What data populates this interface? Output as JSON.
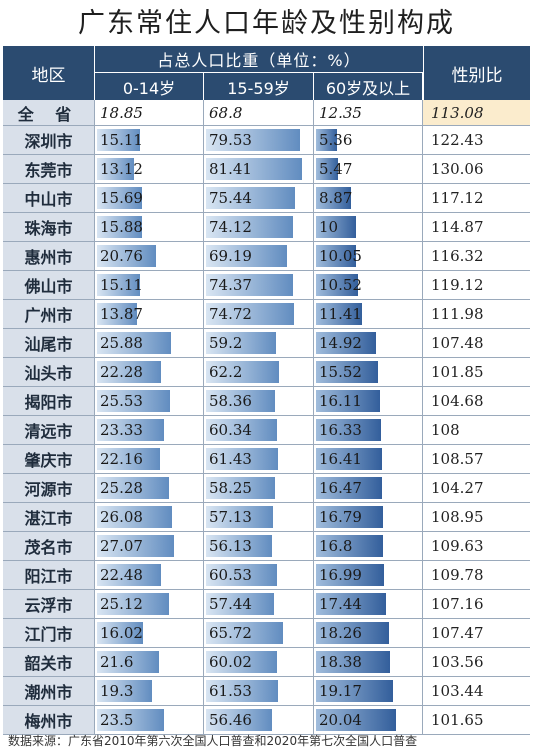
{
  "title": "广东常住人口年龄及性别构成",
  "header": {
    "region": "地区",
    "group": "占总人口比重（单位：%）",
    "age_0_14": "0-14岁",
    "age_15_59": "15-59岁",
    "age_60_plus": "60岁及以上",
    "sex_ratio": "性别比"
  },
  "rows": [
    {
      "region": "全 省",
      "a": "18.85",
      "b": "68.8",
      "c": "12.35",
      "sex": "113.08"
    },
    {
      "region": "深圳市",
      "a": "15.11",
      "b": "79.53",
      "c": "5.36",
      "sex": "122.43"
    },
    {
      "region": "东莞市",
      "a": "13.12",
      "b": "81.41",
      "c": "5.47",
      "sex": "130.06"
    },
    {
      "region": "中山市",
      "a": "15.69",
      "b": "75.44",
      "c": "8.87",
      "sex": "117.12"
    },
    {
      "region": "珠海市",
      "a": "15.88",
      "b": "74.12",
      "c": "10",
      "sex": "114.87"
    },
    {
      "region": "惠州市",
      "a": "20.76",
      "b": "69.19",
      "c": "10.05",
      "sex": "116.32"
    },
    {
      "region": "佛山市",
      "a": "15.11",
      "b": "74.37",
      "c": "10.52",
      "sex": "119.12"
    },
    {
      "region": "广州市",
      "a": "13.87",
      "b": "74.72",
      "c": "11.41",
      "sex": "111.98"
    },
    {
      "region": "汕尾市",
      "a": "25.88",
      "b": "59.2",
      "c": "14.92",
      "sex": "107.48"
    },
    {
      "region": "汕头市",
      "a": "22.28",
      "b": "62.2",
      "c": "15.52",
      "sex": "101.85"
    },
    {
      "region": "揭阳市",
      "a": "25.53",
      "b": "58.36",
      "c": "16.11",
      "sex": "104.68"
    },
    {
      "region": "清远市",
      "a": "23.33",
      "b": "60.34",
      "c": "16.33",
      "sex": "108"
    },
    {
      "region": "肇庆市",
      "a": "22.16",
      "b": "61.43",
      "c": "16.41",
      "sex": "108.57"
    },
    {
      "region": "河源市",
      "a": "25.28",
      "b": "58.25",
      "c": "16.47",
      "sex": "104.27"
    },
    {
      "region": "湛江市",
      "a": "26.08",
      "b": "57.13",
      "c": "16.79",
      "sex": "108.95"
    },
    {
      "region": "茂名市",
      "a": "27.07",
      "b": "56.13",
      "c": "16.8",
      "sex": "109.63"
    },
    {
      "region": "阳江市",
      "a": "22.48",
      "b": "60.53",
      "c": "16.99",
      "sex": "109.78"
    },
    {
      "region": "云浮市",
      "a": "25.12",
      "b": "57.44",
      "c": "17.44",
      "sex": "107.16"
    },
    {
      "region": "江门市",
      "a": "16.02",
      "b": "65.72",
      "c": "18.26",
      "sex": "107.47"
    },
    {
      "region": "韶关市",
      "a": "21.6",
      "b": "60.02",
      "c": "18.38",
      "sex": "103.56"
    },
    {
      "region": "潮州市",
      "a": "19.3",
      "b": "61.53",
      "c": "19.17",
      "sex": "103.44"
    },
    {
      "region": "梅州市",
      "a": "23.5",
      "b": "56.46",
      "c": "20.04",
      "sex": "101.65"
    }
  ],
  "source": "数据来源：广东省2010年第六次全国人口普查和2020年第七次全国人口普查",
  "colors": {
    "header_bg": "#2b4b70",
    "region_bg": "#d9e0ea",
    "total_sex_bg": "#fbeccd"
  }
}
